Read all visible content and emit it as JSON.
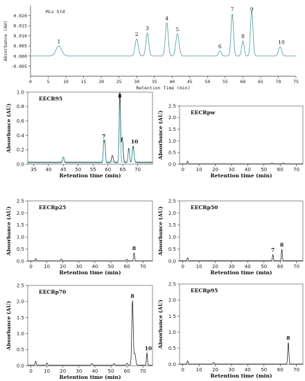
{
  "chart_data": [
    {
      "type": "line",
      "panel_label": "Mix Std",
      "ylabel": "Absorbance (AU)",
      "xlabel": "Retention Time (min)",
      "xlim": [
        0,
        75
      ],
      "ylim": [
        -0.01,
        0.025
      ],
      "xticks": [
        "0",
        "5",
        "10",
        "15",
        "20",
        "25",
        "30",
        "35",
        "40",
        "45",
        "50",
        "55",
        "60",
        "65",
        "70",
        "75"
      ],
      "yticks": [
        "-0.005",
        "0.000",
        "0.005",
        "0.010",
        "0.015",
        "0.020"
      ],
      "series": [
        {
          "color": "#4a9a9a",
          "baseline": 0.0,
          "peaks": [
            {
              "x": 8.0,
              "y": 0.005,
              "w": 0.8,
              "label": "1"
            },
            {
              "x": 30.0,
              "y": 0.0085,
              "w": 0.45,
              "label": "2"
            },
            {
              "x": 33.0,
              "y": 0.0115,
              "w": 0.4,
              "label": "3"
            },
            {
              "x": 38.5,
              "y": 0.0165,
              "w": 0.4,
              "label": "4"
            },
            {
              "x": 41.5,
              "y": 0.011,
              "w": 0.45,
              "label": "5"
            },
            {
              "x": 53.5,
              "y": 0.0025,
              "w": 0.4,
              "label": "6"
            },
            {
              "x": 57.0,
              "y": 0.021,
              "w": 0.35,
              "label": "7"
            },
            {
              "x": 60.0,
              "y": 0.0075,
              "w": 0.35,
              "label": "8"
            },
            {
              "x": 62.5,
              "y": 0.0225,
              "w": 0.35,
              "label": "9"
            },
            {
              "x": 70.5,
              "y": 0.0045,
              "w": 0.45,
              "label": "10"
            }
          ]
        }
      ]
    },
    {
      "type": "line",
      "panel_label": "EECR95",
      "ylabel": "Absorbance (AU)",
      "xlabel": "Retention time (min)",
      "xlim": [
        33,
        75
      ],
      "ylim": [
        0,
        1.0
      ],
      "xticks": [
        "35",
        "40",
        "45",
        "50",
        "55",
        "60",
        "65",
        "70"
      ],
      "yticks": [
        "0.0",
        "0.2",
        "0.4",
        "0.6",
        "0.8",
        "1.0"
      ],
      "series": [
        {
          "color": "#1a1a1a",
          "baseline": 0.02,
          "peaks": [
            {
              "x": 45.0,
              "y": 0.08,
              "w": 0.25,
              "label": ""
            },
            {
              "x": 58.6,
              "y": 0.27,
              "w": 0.2,
              "label": "7"
            },
            {
              "x": 59.0,
              "y": 0.25,
              "w": 0.2,
              "label": ""
            },
            {
              "x": 61.5,
              "y": 0.1,
              "w": 0.3,
              "label": ""
            },
            {
              "x": 64.0,
              "y": 0.97,
              "w": 0.22,
              "label": "8"
            },
            {
              "x": 64.8,
              "y": 0.35,
              "w": 0.3,
              "label": ""
            },
            {
              "x": 67.0,
              "y": 0.2,
              "w": 0.25,
              "label": ""
            },
            {
              "x": 68.5,
              "y": 0.23,
              "w": 0.3,
              "label": "10"
            }
          ]
        },
        {
          "color": "#3aa3a3",
          "baseline": 0.03,
          "peaks": [
            {
              "x": 45.0,
              "y": 0.07,
              "w": 0.25,
              "label": ""
            },
            {
              "x": 58.6,
              "y": 0.24,
              "w": 0.2,
              "label": ""
            },
            {
              "x": 59.0,
              "y": 0.22,
              "w": 0.2,
              "label": ""
            },
            {
              "x": 64.0,
              "y": 0.82,
              "w": 0.22,
              "label": ""
            },
            {
              "x": 67.0,
              "y": 0.17,
              "w": 0.25,
              "label": ""
            },
            {
              "x": 68.5,
              "y": 0.2,
              "w": 0.3,
              "label": ""
            }
          ]
        }
      ]
    },
    {
      "type": "line",
      "panel_label": "EECRpw",
      "ylabel": "Absorbance (AU)",
      "xlabel": "Retention time (min)",
      "xlim": [
        -2,
        74
      ],
      "ylim": [
        0,
        2.5
      ],
      "xticks": [
        "0",
        "10",
        "20",
        "30",
        "40",
        "50",
        "60",
        "70"
      ],
      "yticks": [
        "0.0",
        "0.5",
        "1.0",
        "1.5",
        "2.0",
        "2.5"
      ],
      "series": [
        {
          "color": "#1a1a1a",
          "baseline": 0.01,
          "peaks": [
            {
              "x": 3.0,
              "y": 0.12,
              "w": 0.3,
              "label": ""
            },
            {
              "x": 55.0,
              "y": 0.04,
              "w": 0.6,
              "label": ""
            },
            {
              "x": 62.0,
              "y": 0.04,
              "w": 0.6,
              "label": ""
            }
          ]
        }
      ]
    },
    {
      "type": "line",
      "panel_label": "EECRp25",
      "ylabel": "Absorbance (AU)",
      "xlabel": "Retention time (min)",
      "xlim": [
        -2,
        76
      ],
      "ylim": [
        0,
        2.5
      ],
      "xticks": [
        "0",
        "10",
        "20",
        "30",
        "40",
        "50",
        "60",
        "70"
      ],
      "yticks": [
        "0.0",
        "0.5",
        "1.0",
        "1.5",
        "2.0",
        "2.5"
      ],
      "series": [
        {
          "color": "#1a1a1a",
          "baseline": 0.01,
          "peaks": [
            {
              "x": 3.0,
              "y": 0.1,
              "w": 0.3,
              "label": ""
            },
            {
              "x": 19.0,
              "y": 0.08,
              "w": 0.4,
              "label": ""
            },
            {
              "x": 60.0,
              "y": 0.07,
              "w": 0.4,
              "label": ""
            },
            {
              "x": 64.5,
              "y": 0.33,
              "w": 0.35,
              "label": "8"
            }
          ]
        }
      ]
    },
    {
      "type": "line",
      "panel_label": "EECRp50",
      "ylabel": "Absorbance (AU)",
      "xlabel": "Retention time (min)",
      "xlim": [
        -2,
        74
      ],
      "ylim": [
        0,
        2.5
      ],
      "xticks": [
        "0",
        "10",
        "20",
        "30",
        "40",
        "50",
        "60",
        "70"
      ],
      "yticks": [
        "0.0",
        "0.5",
        "1.0",
        "1.5",
        "2.0",
        "2.5"
      ],
      "series": [
        {
          "color": "#1a1a1a",
          "baseline": 0.02,
          "peaks": [
            {
              "x": 3.0,
              "y": 0.12,
              "w": 0.3,
              "label": ""
            },
            {
              "x": 55.5,
              "y": 0.25,
              "w": 0.3,
              "label": "7"
            },
            {
              "x": 61.0,
              "y": 0.47,
              "w": 0.3,
              "label": "8"
            }
          ]
        }
      ]
    },
    {
      "type": "line",
      "panel_label": "EECRp70",
      "ylabel": "Absorbance (AU)",
      "xlabel": "Retention time (min)",
      "xlim": [
        -2,
        76
      ],
      "ylim": [
        0,
        2.5
      ],
      "xticks": [
        "0",
        "10",
        "20",
        "30",
        "40",
        "50",
        "60",
        "70"
      ],
      "yticks": [
        "0.0",
        "0.5",
        "1.0",
        "1.5",
        "2.0",
        "2.5"
      ],
      "series": [
        {
          "color": "#1a1a1a",
          "baseline": 0.02,
          "peaks": [
            {
              "x": 3.0,
              "y": 0.12,
              "w": 0.3,
              "label": ""
            },
            {
              "x": 10.0,
              "y": 0.07,
              "w": 0.3,
              "label": ""
            },
            {
              "x": 38.0,
              "y": 0.05,
              "w": 0.4,
              "label": ""
            },
            {
              "x": 52.0,
              "y": 0.05,
              "w": 0.4,
              "label": ""
            },
            {
              "x": 60.0,
              "y": 0.06,
              "w": 0.4,
              "label": ""
            },
            {
              "x": 63.5,
              "y": 2.0,
              "w": 0.45,
              "label": "8"
            },
            {
              "x": 65.0,
              "y": 0.35,
              "w": 0.5,
              "label": ""
            },
            {
              "x": 72.5,
              "y": 0.38,
              "w": 0.3,
              "label": "10"
            }
          ]
        }
      ]
    },
    {
      "type": "line",
      "panel_label": "EECRp95",
      "ylabel": "Absorbance (AU)",
      "xlabel": "Retention time (min)",
      "xlim": [
        -2,
        74
      ],
      "ylim": [
        0,
        2.5
      ],
      "xticks": [
        "0",
        "10",
        "20",
        "30",
        "40",
        "50",
        "60",
        "70"
      ],
      "yticks": [
        "0.0",
        "0.5",
        "1.0",
        "1.5",
        "2.0",
        "2.5"
      ],
      "series": [
        {
          "color": "#1a1a1a",
          "baseline": 0.01,
          "peaks": [
            {
              "x": 3.0,
              "y": 0.1,
              "w": 0.3,
              "label": ""
            },
            {
              "x": 19.0,
              "y": 0.05,
              "w": 0.4,
              "label": ""
            },
            {
              "x": 65.0,
              "y": 0.67,
              "w": 0.35,
              "label": "8"
            }
          ]
        }
      ]
    }
  ]
}
